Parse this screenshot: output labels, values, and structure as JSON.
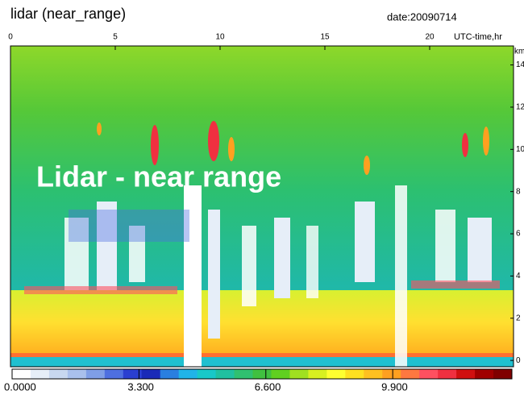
{
  "chart_data": {
    "type": "heatmap",
    "title": "lidar (near_range)",
    "date": "date:20090714",
    "annotation": "Lidar - near range",
    "xlabel": "UTC-time,hr",
    "ylabel": "km",
    "xlim": [
      0,
      24
    ],
    "xticks": [
      0,
      5,
      10,
      15,
      20
    ],
    "ylim": [
      -0.3,
      14.9
    ],
    "yticks": [
      0,
      2,
      4,
      6,
      8,
      10,
      12,
      14
    ],
    "colorbar": {
      "lim": [
        0,
        13
      ],
      "ticks": [
        {
          "value": 0,
          "label": "0.0000"
        },
        {
          "value": 3.3,
          "label": "3.300"
        },
        {
          "value": 6.6,
          "label": "6.600"
        },
        {
          "value": 9.9,
          "label": "9.900"
        }
      ],
      "colors": [
        "#ffffff",
        "#e6eef8",
        "#c8d8f0",
        "#a9c0ec",
        "#7f9ee6",
        "#4e6fe0",
        "#2a3fd0",
        "#1a2ab8",
        "#2a7fe0",
        "#20b4e8",
        "#18c8c8",
        "#20c0a0",
        "#30c070",
        "#40c040",
        "#60d020",
        "#a0e020",
        "#d8f020",
        "#ffff30",
        "#ffe020",
        "#ffc020",
        "#ffa020",
        "#ff7840",
        "#ff5060",
        "#f03040",
        "#d01010",
        "#a00000",
        "#800000"
      ]
    }
  }
}
